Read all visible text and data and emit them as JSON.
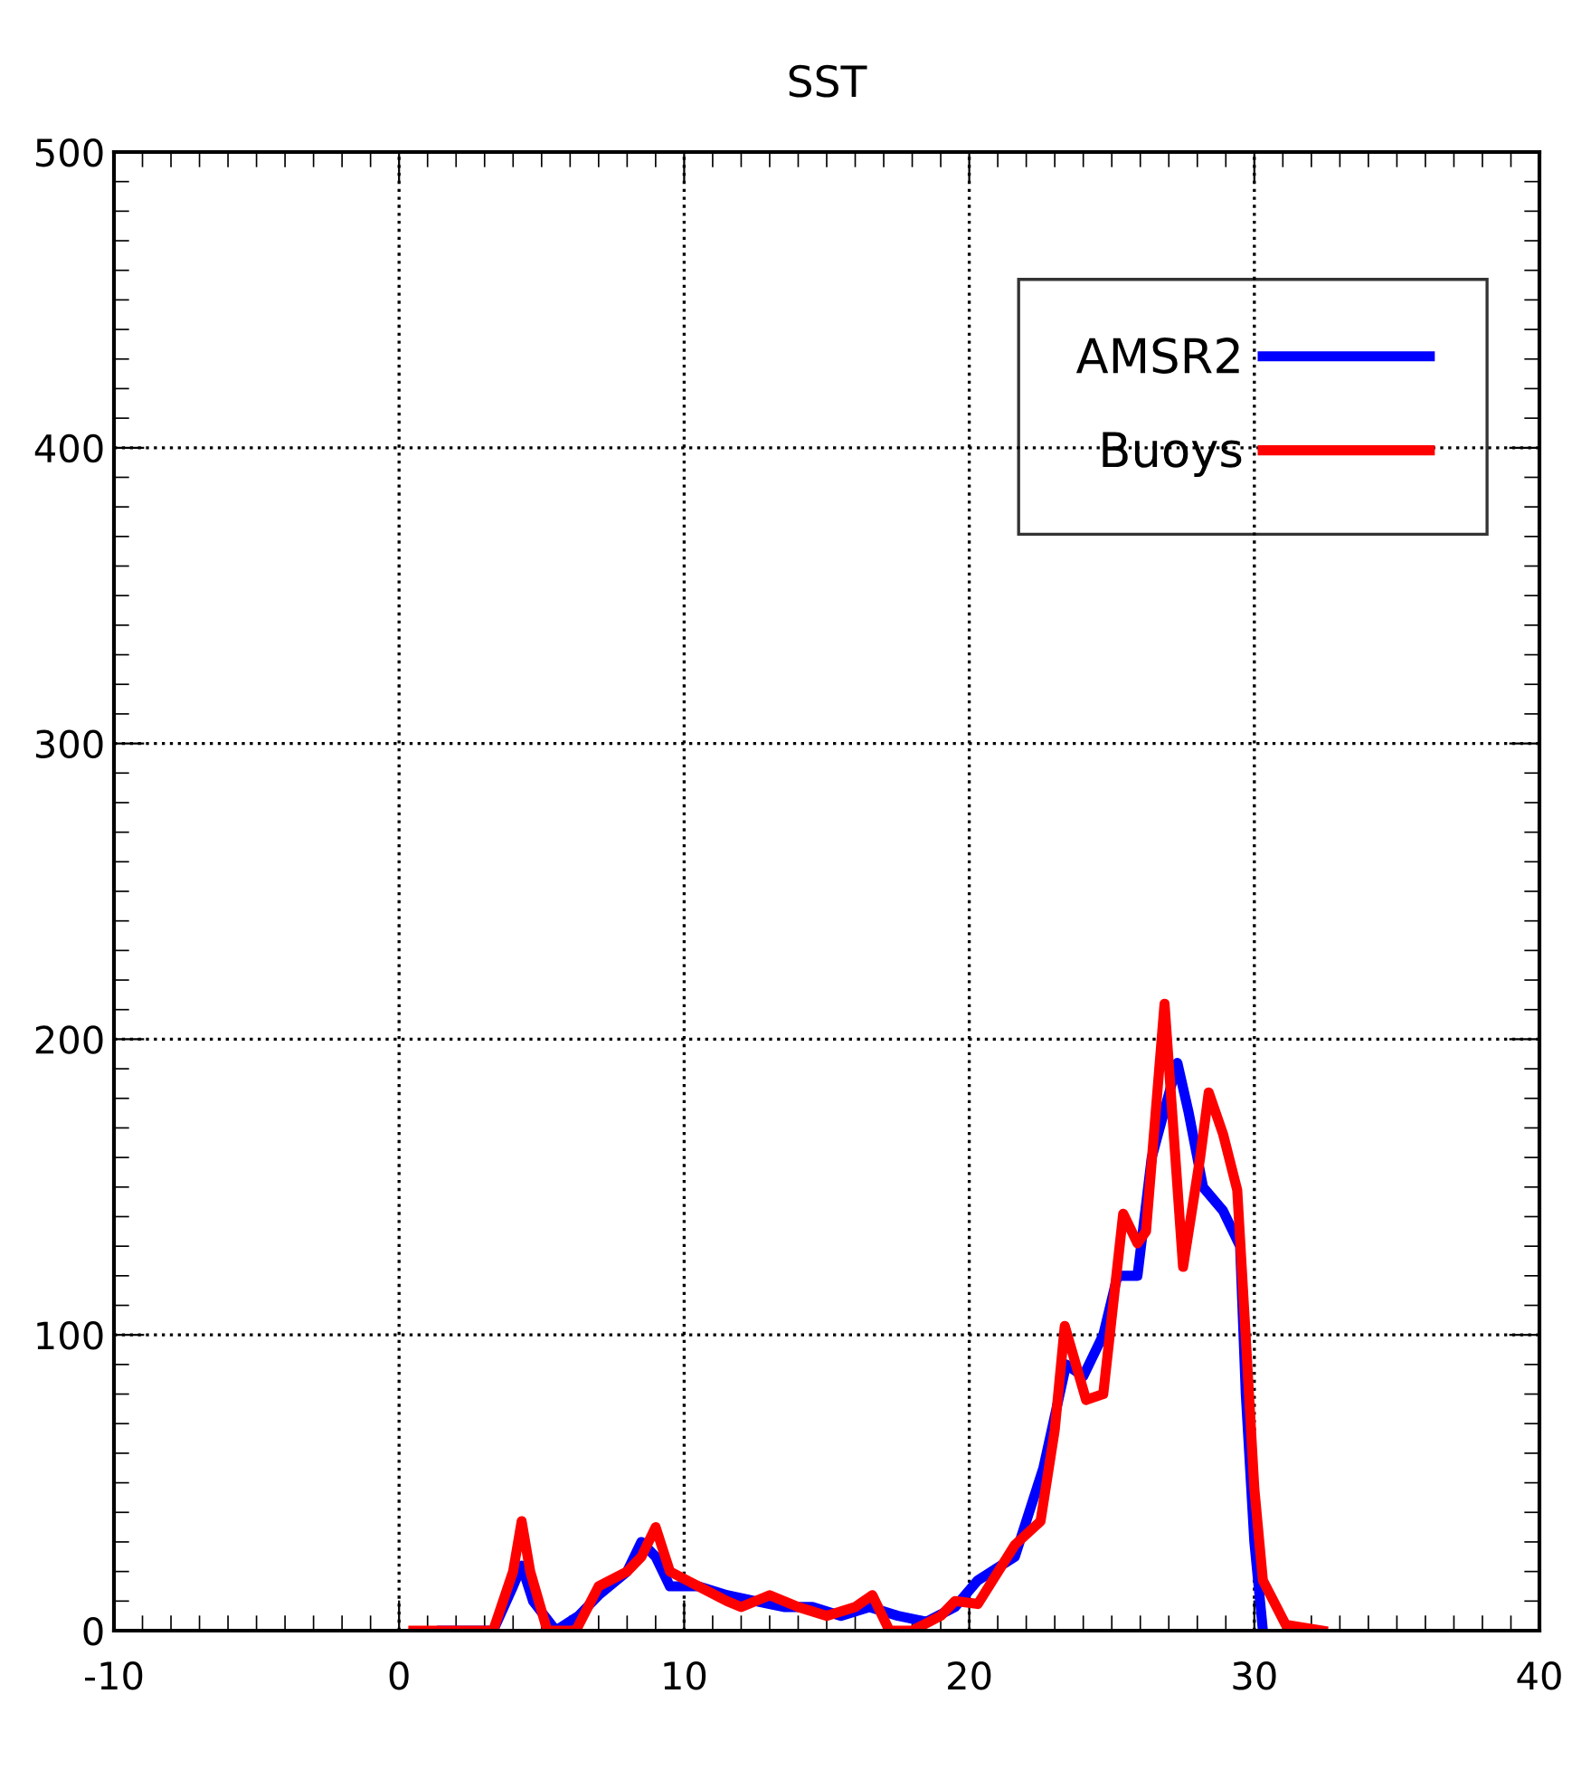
{
  "chart_data": {
    "type": "line",
    "title": "SST",
    "xlim": [
      -10,
      40
    ],
    "xticks": [
      -10,
      0,
      10,
      20,
      30,
      40
    ],
    "ylim": [
      0,
      500
    ],
    "yticks": [
      0,
      100,
      200,
      300,
      400,
      500
    ],
    "grid": true,
    "legend": "top right",
    "line_style": "solid",
    "series": [
      {
        "name": "AMSR2",
        "color": "#0000ff",
        "x": [
          1.5,
          3.3,
          4,
          4.3,
          4.7,
          5.5,
          6.3,
          7,
          8,
          8.5,
          9,
          9.5,
          10.5,
          11.5,
          12.5,
          13.5,
          14.5,
          15.5,
          16.5,
          17.5,
          18.5,
          19.5,
          20.3,
          21.6,
          22.6,
          23.4,
          24,
          24.7,
          25.2,
          25.9,
          26.4,
          27.3,
          27.7,
          28.2,
          28.9,
          29.5,
          29.7,
          30,
          30.3
        ],
        "values": [
          0,
          0,
          15,
          22,
          10,
          0,
          5,
          12,
          20,
          30,
          25,
          15,
          15,
          12,
          10,
          8,
          8,
          5,
          8,
          5,
          3,
          8,
          17,
          25,
          55,
          90,
          86,
          100,
          120,
          120,
          160,
          192,
          175,
          150,
          142,
          130,
          80,
          30,
          0
        ]
      },
      {
        "name": "Buoys",
        "color": "#ff0000",
        "x": [
          0.5,
          3.3,
          4,
          4.3,
          4.6,
          5.2,
          6.2,
          7,
          8,
          8.5,
          9,
          9.5,
          10.5,
          11.5,
          12,
          13,
          14,
          15,
          16,
          16.6,
          17.2,
          18,
          19,
          19.5,
          20.3,
          21.6,
          22.5,
          23,
          23.35,
          24.1,
          24.7,
          25.4,
          25.9,
          26.2,
          26.85,
          27.5,
          28.1,
          28.4,
          28.9,
          29.4,
          29.7,
          30,
          30.3,
          31.1,
          32.4
        ],
        "values": [
          0,
          0,
          20,
          37,
          20,
          0,
          0,
          15,
          20,
          25,
          35,
          20,
          15,
          10,
          8,
          12,
          8,
          5,
          8,
          12,
          0,
          0,
          5,
          10,
          9,
          29,
          37,
          68,
          103,
          78,
          80,
          141,
          131,
          135,
          212,
          123,
          160,
          182,
          168,
          149,
          99,
          48,
          17,
          2,
          0
        ]
      }
    ]
  }
}
